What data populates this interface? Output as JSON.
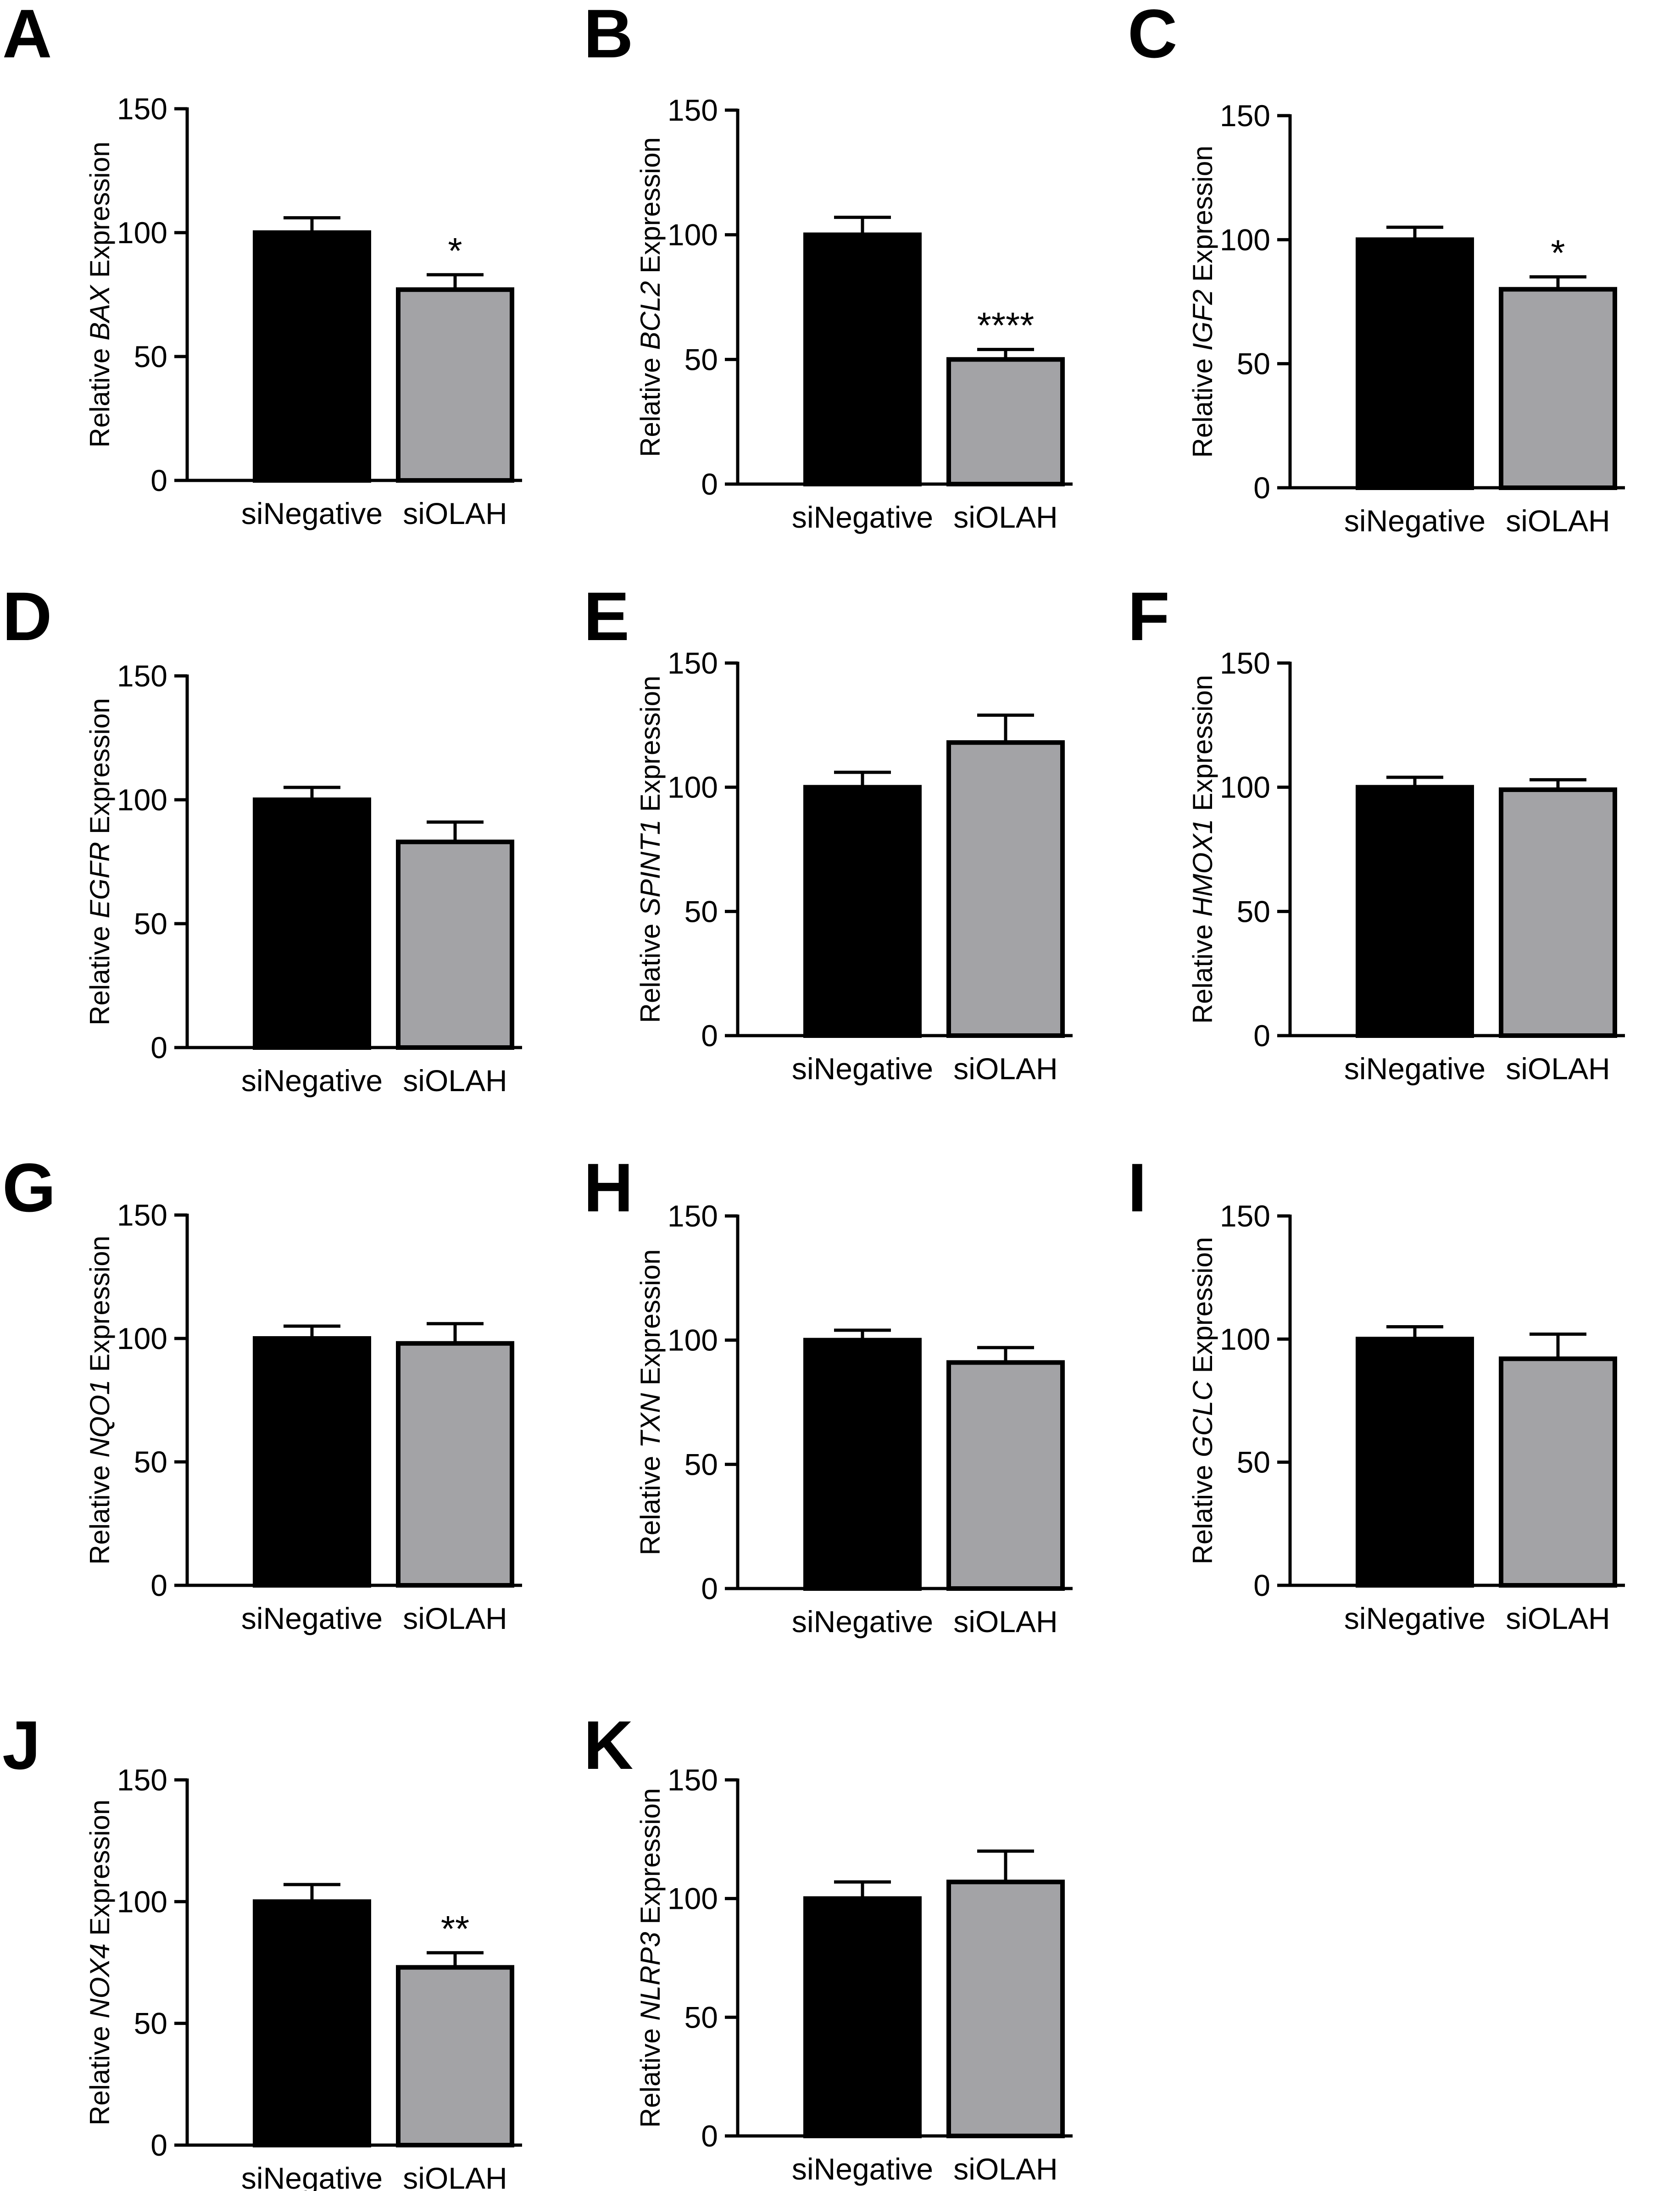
{
  "colors": {
    "siNegative": "#000000",
    "siOLAH": "#a3a3a6",
    "outline": "#000000"
  },
  "chart_data": [
    {
      "type": "bar",
      "panel": "A",
      "gene": "BAX",
      "ylabel_prefix": "Relative",
      "ylabel_suffix": "Expression",
      "categories": [
        "siNegative",
        "siOLAH"
      ],
      "values": [
        100,
        77
      ],
      "errors": [
        6,
        6
      ],
      "significance": [
        "",
        "*"
      ],
      "ylim": [
        0,
        150
      ],
      "yticks": [
        0,
        50,
        100,
        150
      ],
      "grid": false
    },
    {
      "type": "bar",
      "panel": "B",
      "gene": "BCL2",
      "ylabel_prefix": "Relative",
      "ylabel_suffix": "Expression",
      "categories": [
        "siNegative",
        "siOLAH"
      ],
      "values": [
        100,
        50
      ],
      "errors": [
        7,
        4
      ],
      "significance": [
        "",
        "****"
      ],
      "ylim": [
        0,
        150
      ],
      "yticks": [
        0,
        50,
        100,
        150
      ],
      "grid": false
    },
    {
      "type": "bar",
      "panel": "C",
      "gene": "IGF2",
      "ylabel_prefix": "Relative",
      "ylabel_suffix": "Expression",
      "categories": [
        "siNegative",
        "siOLAH"
      ],
      "values": [
        100,
        80
      ],
      "errors": [
        5,
        5
      ],
      "significance": [
        "",
        "*"
      ],
      "ylim": [
        0,
        150
      ],
      "yticks": [
        0,
        50,
        100,
        150
      ],
      "grid": false
    },
    {
      "type": "bar",
      "panel": "D",
      "gene": "EGFR",
      "ylabel_prefix": "Relative",
      "ylabel_suffix": "Expression",
      "categories": [
        "siNegative",
        "siOLAH"
      ],
      "values": [
        100,
        83
      ],
      "errors": [
        5,
        8
      ],
      "significance": [
        "",
        ""
      ],
      "ylim": [
        0,
        150
      ],
      "yticks": [
        0,
        50,
        100,
        150
      ],
      "grid": false
    },
    {
      "type": "bar",
      "panel": "E",
      "gene": "SPINT1",
      "ylabel_prefix": "Relative",
      "ylabel_suffix": "Expression",
      "categories": [
        "siNegative",
        "siOLAH"
      ],
      "values": [
        100,
        118
      ],
      "errors": [
        6,
        11
      ],
      "significance": [
        "",
        ""
      ],
      "ylim": [
        0,
        150
      ],
      "yticks": [
        0,
        50,
        100,
        150
      ],
      "grid": false
    },
    {
      "type": "bar",
      "panel": "F",
      "gene": "HMOX1",
      "ylabel_prefix": "Relative",
      "ylabel_suffix": "Expression",
      "categories": [
        "siNegative",
        "siOLAH"
      ],
      "values": [
        100,
        99
      ],
      "errors": [
        4,
        4
      ],
      "significance": [
        "",
        ""
      ],
      "ylim": [
        0,
        150
      ],
      "yticks": [
        0,
        50,
        100,
        150
      ],
      "grid": false
    },
    {
      "type": "bar",
      "panel": "G",
      "gene": "NQO1",
      "ylabel_prefix": "Relative",
      "ylabel_suffix": "Expression",
      "categories": [
        "siNegative",
        "siOLAH"
      ],
      "values": [
        100,
        98
      ],
      "errors": [
        5,
        8
      ],
      "significance": [
        "",
        ""
      ],
      "ylim": [
        0,
        150
      ],
      "yticks": [
        0,
        50,
        100,
        150
      ],
      "grid": false
    },
    {
      "type": "bar",
      "panel": "H",
      "gene": "TXN",
      "ylabel_prefix": "Relative",
      "ylabel_suffix": "Expression",
      "categories": [
        "siNegative",
        "siOLAH"
      ],
      "values": [
        100,
        91
      ],
      "errors": [
        4,
        6
      ],
      "significance": [
        "",
        ""
      ],
      "ylim": [
        0,
        150
      ],
      "yticks": [
        0,
        50,
        100,
        150
      ],
      "grid": false
    },
    {
      "type": "bar",
      "panel": "I",
      "gene": "GCLC",
      "ylabel_prefix": "Relative",
      "ylabel_suffix": "Expression",
      "categories": [
        "siNegative",
        "siOLAH"
      ],
      "values": [
        100,
        92
      ],
      "errors": [
        5,
        10
      ],
      "significance": [
        "",
        ""
      ],
      "ylim": [
        0,
        150
      ],
      "yticks": [
        0,
        50,
        100,
        150
      ],
      "grid": false
    },
    {
      "type": "bar",
      "panel": "J",
      "gene": "NOX4",
      "ylabel_prefix": "Relative",
      "ylabel_suffix": "Expression",
      "categories": [
        "siNegative",
        "siOLAH"
      ],
      "values": [
        100,
        73
      ],
      "errors": [
        7,
        6
      ],
      "significance": [
        "",
        "**"
      ],
      "ylim": [
        0,
        150
      ],
      "yticks": [
        0,
        50,
        100,
        150
      ],
      "grid": false
    },
    {
      "type": "bar",
      "panel": "K",
      "gene": "NLRP3",
      "ylabel_prefix": "Relative",
      "ylabel_suffix": "Expression",
      "categories": [
        "siNegative",
        "siOLAH"
      ],
      "values": [
        100,
        107
      ],
      "errors": [
        7,
        13
      ],
      "significance": [
        "",
        ""
      ],
      "ylim": [
        0,
        150
      ],
      "yticks": [
        0,
        50,
        100,
        150
      ],
      "grid": false
    }
  ]
}
